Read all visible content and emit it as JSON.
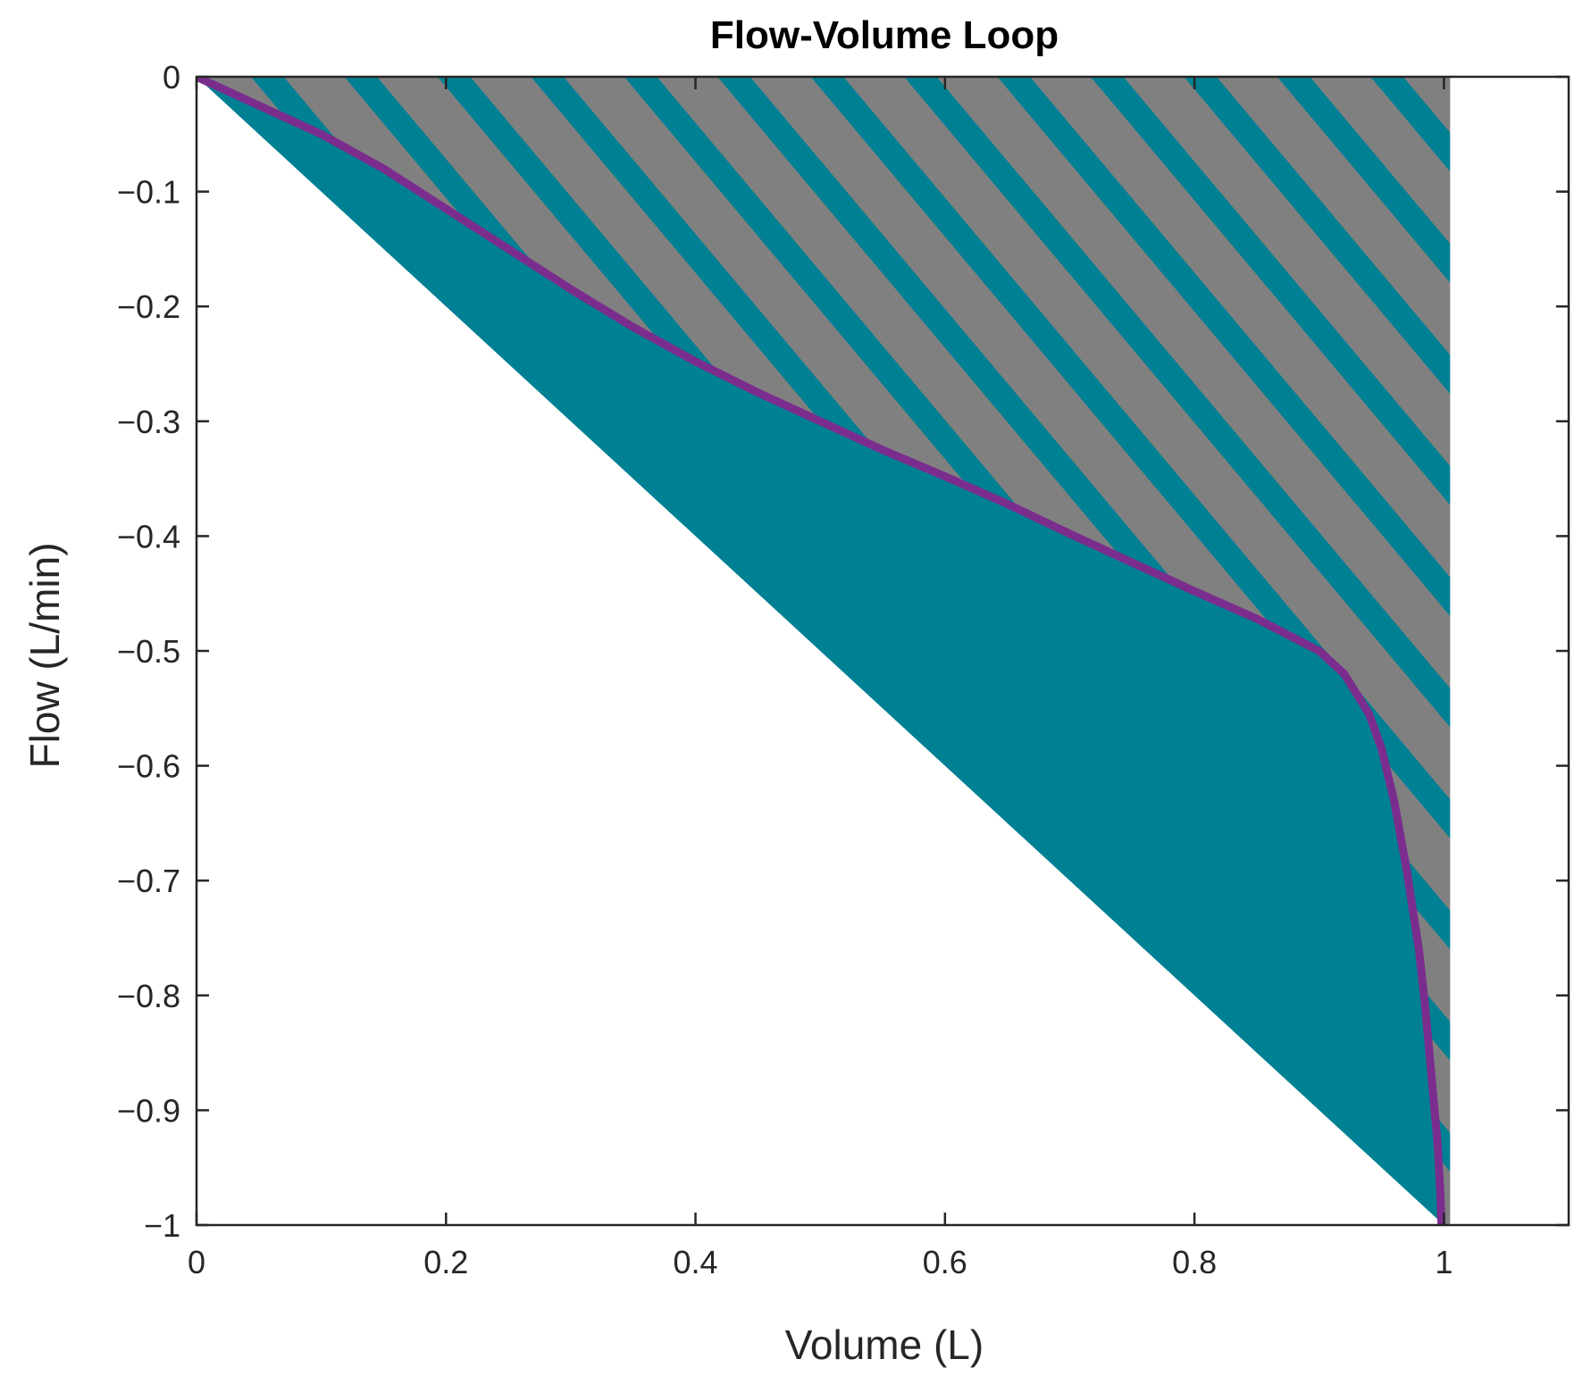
{
  "chart_data": {
    "type": "area",
    "title": "Flow-Volume Loop",
    "xlabel": "Volume (L)",
    "ylabel": "Flow (L/min)",
    "xlim": [
      0,
      1.1
    ],
    "ylim": [
      -1,
      0
    ],
    "xticks": [
      0,
      0.2,
      0.4,
      0.6,
      0.8,
      1
    ],
    "xtick_labels": [
      "0",
      "0.2",
      "0.4",
      "0.6",
      "0.8",
      "1"
    ],
    "yticks": [
      0,
      -0.1,
      -0.2,
      -0.3,
      -0.4,
      -0.5,
      -0.6,
      -0.7,
      -0.8,
      -0.9,
      -1
    ],
    "ytick_labels": [
      "0",
      "−0.1",
      "−0.2",
      "−0.3",
      "−0.4",
      "−0.5",
      "−0.6",
      "−0.7",
      "−0.8",
      "−0.9",
      "−1"
    ],
    "grid": false,
    "series": [
      {
        "kind": "line",
        "color": "#7B2D8E",
        "x": [
          0,
          0.05,
          0.1,
          0.15,
          0.2,
          0.25,
          0.3,
          0.35,
          0.4,
          0.45,
          0.5,
          0.55,
          0.6,
          0.65,
          0.7,
          0.75,
          0.8,
          0.85,
          0.9,
          0.92,
          0.94,
          0.95,
          0.96,
          0.97,
          0.98,
          0.985,
          0.99,
          0.995,
          0.997,
          0.998
        ],
        "y": [
          0,
          -0.025,
          -0.05,
          -0.08,
          -0.115,
          -0.15,
          -0.185,
          -0.218,
          -0.248,
          -0.275,
          -0.3,
          -0.325,
          -0.348,
          -0.372,
          -0.398,
          -0.423,
          -0.448,
          -0.472,
          -0.5,
          -0.52,
          -0.555,
          -0.585,
          -0.63,
          -0.69,
          -0.76,
          -0.81,
          -0.87,
          -0.93,
          -0.97,
          -1.0
        ]
      },
      {
        "kind": "fill-below-curve",
        "color": "#008093",
        "boundary_x": [
          0,
          1
        ],
        "boundary_y": [
          0,
          -1
        ]
      },
      {
        "kind": "hatched-fill-above-curve",
        "color": "#808080",
        "hatch_color": "#008093",
        "x_max": 1.005
      }
    ]
  }
}
